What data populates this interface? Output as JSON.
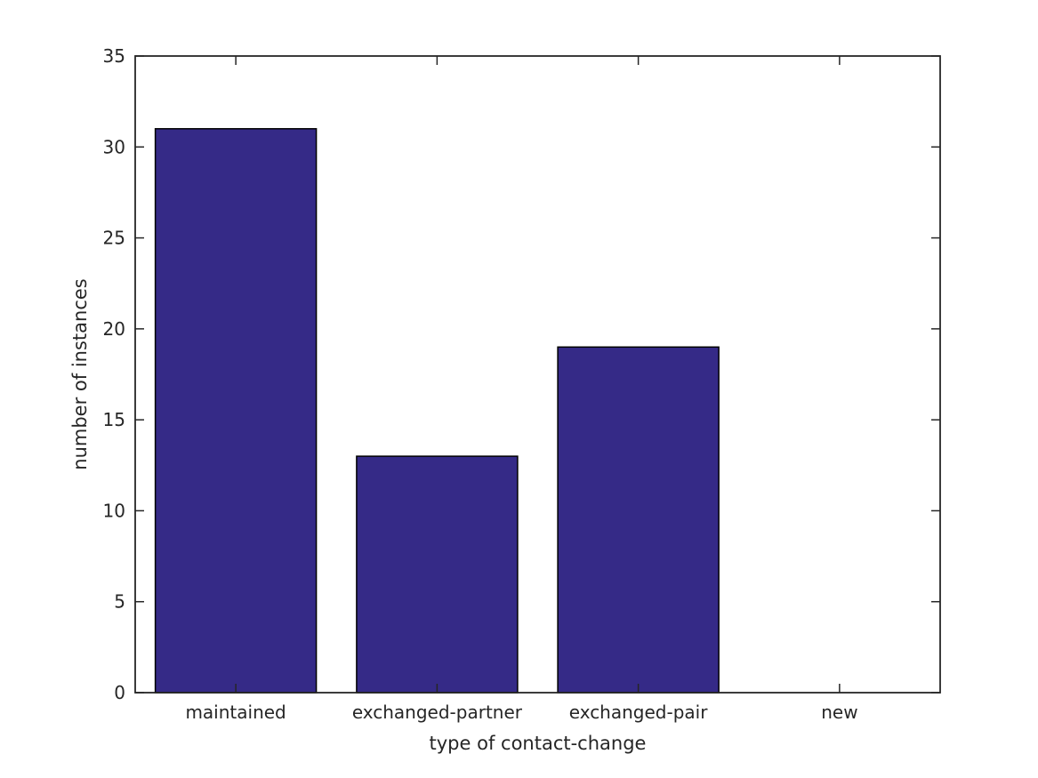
{
  "figure": {
    "background": "#ffffff"
  },
  "chart_data": {
    "type": "bar",
    "categories": [
      "maintained",
      "exchanged-partner",
      "exchanged-pair",
      "new"
    ],
    "values": [
      31,
      13,
      19,
      0
    ],
    "title": "",
    "xlabel": "type of contact-change",
    "ylabel": "number of instances",
    "ylim": [
      0,
      35
    ],
    "yticks": [
      0,
      5,
      10,
      15,
      20,
      25,
      30,
      35
    ],
    "bar_color": "#352A87",
    "bar_edge_color": "#000000",
    "axis_color": "#262626",
    "grid": false,
    "legend": "none"
  }
}
